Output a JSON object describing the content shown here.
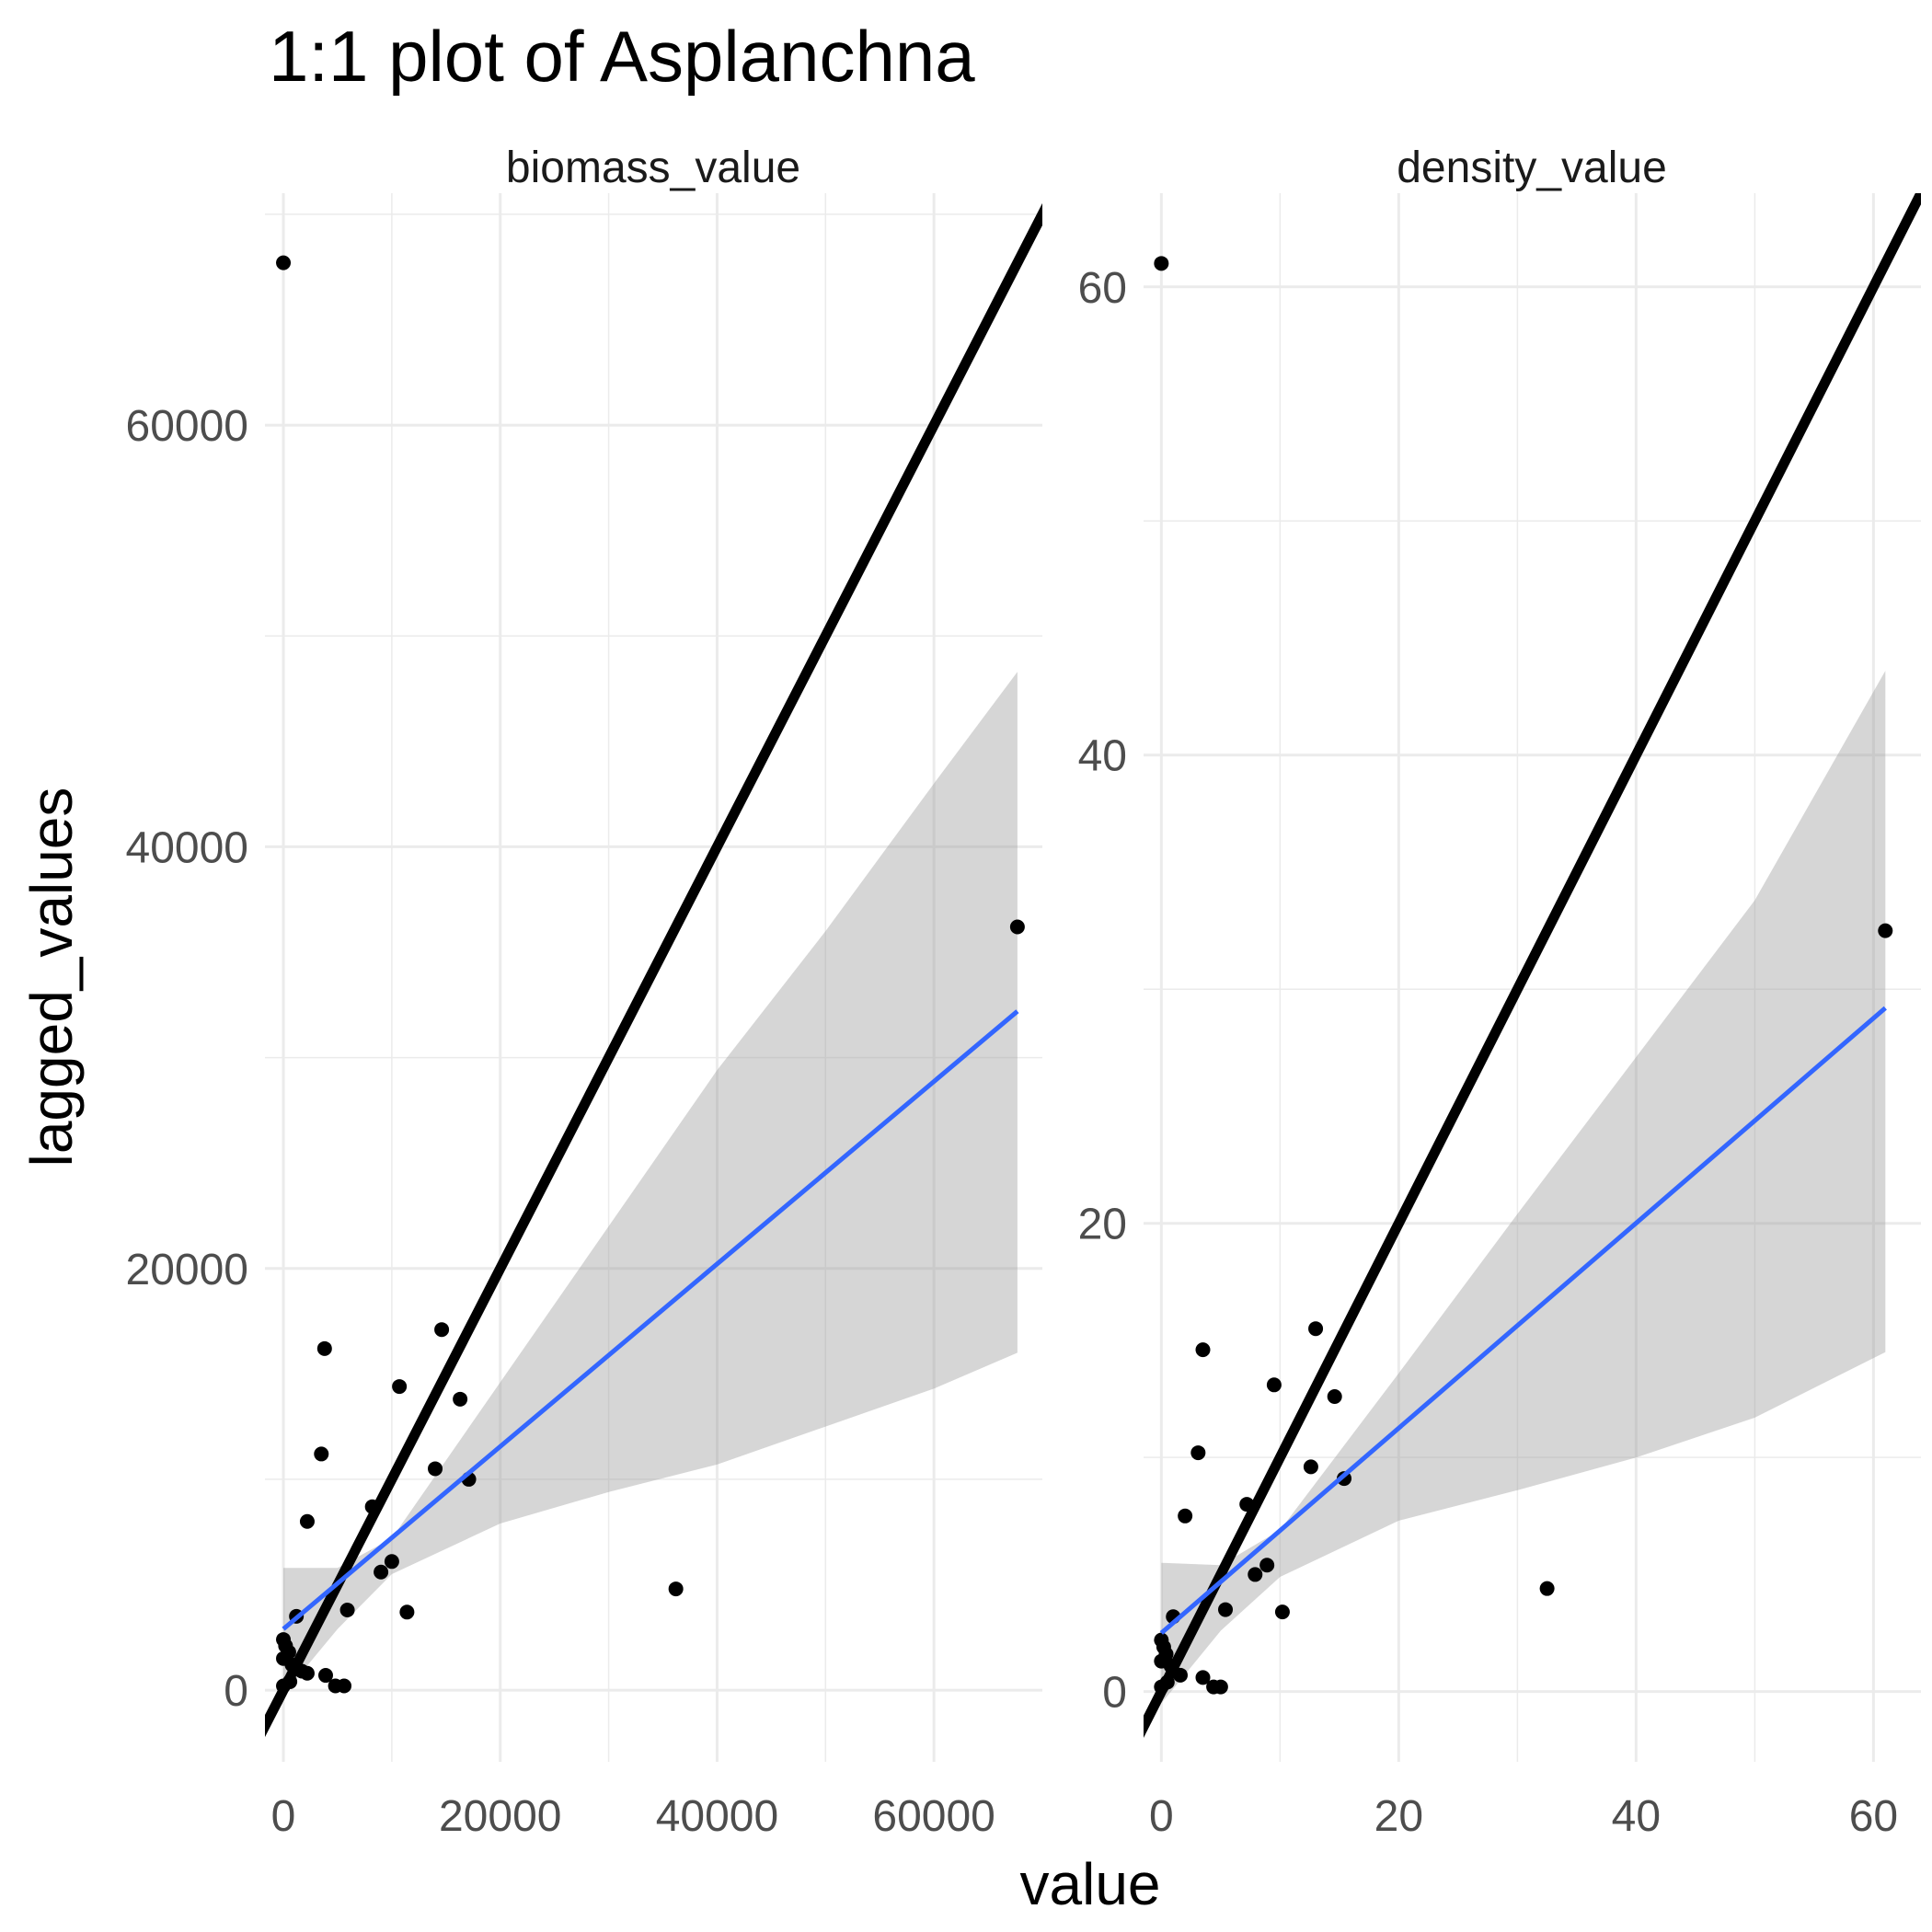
{
  "chart_data": {
    "type": "scatter",
    "title": "1:1 plot of Asplanchna",
    "xlabel": "value",
    "ylabel": "lagged_values",
    "grid": true,
    "colors": {
      "points": "#000000",
      "identity_line": "#000000",
      "fit_line": "#3366FF",
      "ci_band": "#999999",
      "grid": "#EBEBEB"
    },
    "facets": [
      {
        "label": "biomass_value",
        "xlim": [
          -1700,
          70000
        ],
        "ylim": [
          -3400,
          71000
        ],
        "x_ticks": [
          0,
          20000,
          40000,
          60000
        ],
        "x_tick_labels": [
          "0",
          "20000",
          "40000",
          "60000"
        ],
        "y_ticks": [
          0,
          20000,
          40000,
          60000
        ],
        "y_tick_labels": [
          "0",
          "20000",
          "40000",
          "60000"
        ],
        "points": [
          {
            "x": 0,
            "y": 67700
          },
          {
            "x": 67700,
            "y": 36200
          },
          {
            "x": 36200,
            "y": 4800
          },
          {
            "x": 14600,
            "y": 17100
          },
          {
            "x": 3800,
            "y": 16200
          },
          {
            "x": 10700,
            "y": 14400
          },
          {
            "x": 16300,
            "y": 13800
          },
          {
            "x": 3500,
            "y": 11200
          },
          {
            "x": 14000,
            "y": 10500
          },
          {
            "x": 17100,
            "y": 10000
          },
          {
            "x": 2200,
            "y": 8000
          },
          {
            "x": 8200,
            "y": 8700
          },
          {
            "x": 10000,
            "y": 6100
          },
          {
            "x": 9000,
            "y": 5600
          },
          {
            "x": 5900,
            "y": 3800
          },
          {
            "x": 11400,
            "y": 3700
          },
          {
            "x": 1200,
            "y": 3500
          },
          {
            "x": 0,
            "y": 2400
          },
          {
            "x": 200,
            "y": 2100
          },
          {
            "x": 500,
            "y": 1800
          },
          {
            "x": 0,
            "y": 1500
          },
          {
            "x": 800,
            "y": 1200
          },
          {
            "x": 1700,
            "y": 900
          },
          {
            "x": 2200,
            "y": 800
          },
          {
            "x": 3900,
            "y": 700
          },
          {
            "x": 4800,
            "y": 200
          },
          {
            "x": 5600,
            "y": 200
          },
          {
            "x": 0,
            "y": 200
          },
          {
            "x": 600,
            "y": 400
          }
        ],
        "fit_line": {
          "x": [
            0,
            67700
          ],
          "y": [
            2900,
            32200
          ]
        },
        "ci_band": {
          "x": [
            0,
            5000,
            10000,
            20000,
            30000,
            40000,
            50000,
            60000,
            67700
          ],
          "lower": [
            -200,
            2900,
            5500,
            7900,
            9400,
            10700,
            12500,
            14300,
            16000
          ],
          "upper": [
            5800,
            5800,
            7200,
            14600,
            22000,
            29400,
            36000,
            43000,
            48300
          ]
        },
        "identity_line": {
          "x": [
            -3400,
            71000
          ],
          "y": [
            -3400,
            71000
          ]
        }
      },
      {
        "label": "density_value",
        "xlim": [
          -1.5,
          64
        ],
        "ylim": [
          -3,
          64
        ],
        "x_ticks": [
          0,
          20,
          40,
          60
        ],
        "x_tick_labels": [
          "0",
          "20",
          "40",
          "60"
        ],
        "y_ticks": [
          0,
          20,
          40,
          60
        ],
        "y_tick_labels": [
          "0",
          "20",
          "40",
          "60"
        ],
        "points": [
          {
            "x": 0,
            "y": 61
          },
          {
            "x": 61,
            "y": 32.5
          },
          {
            "x": 32.5,
            "y": 4.4
          },
          {
            "x": 13,
            "y": 15.5
          },
          {
            "x": 3.5,
            "y": 14.6
          },
          {
            "x": 9.5,
            "y": 13.1
          },
          {
            "x": 14.6,
            "y": 12.6
          },
          {
            "x": 3.1,
            "y": 10.2
          },
          {
            "x": 12.6,
            "y": 9.6
          },
          {
            "x": 15.4,
            "y": 9.1
          },
          {
            "x": 2,
            "y": 7.5
          },
          {
            "x": 7.2,
            "y": 8
          },
          {
            "x": 8.9,
            "y": 5.4
          },
          {
            "x": 7.9,
            "y": 5
          },
          {
            "x": 5.4,
            "y": 3.5
          },
          {
            "x": 10.2,
            "y": 3.4
          },
          {
            "x": 1,
            "y": 3.2
          },
          {
            "x": 0,
            "y": 2.2
          },
          {
            "x": 0.2,
            "y": 1.9
          },
          {
            "x": 0.4,
            "y": 1.6
          },
          {
            "x": 0,
            "y": 1.3
          },
          {
            "x": 0.8,
            "y": 1.1
          },
          {
            "x": 1.6,
            "y": 0.7
          },
          {
            "x": 3.5,
            "y": 0.6
          },
          {
            "x": 4.4,
            "y": 0.2
          },
          {
            "x": 5,
            "y": 0.2
          },
          {
            "x": 0,
            "y": 0.2
          },
          {
            "x": 0.5,
            "y": 0.4
          }
        ],
        "fit_line": {
          "x": [
            0,
            61
          ],
          "y": [
            2.5,
            29.2
          ]
        },
        "ci_band": {
          "x": [
            0,
            5,
            10,
            20,
            30,
            40,
            50,
            61
          ],
          "lower": [
            -0.5,
            2.6,
            4.9,
            7.3,
            8.6,
            10,
            11.7,
            14.5
          ],
          "upper": [
            5.5,
            5.4,
            6.9,
            13.6,
            20.4,
            27.1,
            33.8,
            43.6
          ]
        },
        "identity_line": {
          "x": [
            -3,
            64
          ],
          "y": [
            -3,
            64
          ]
        }
      }
    ]
  }
}
